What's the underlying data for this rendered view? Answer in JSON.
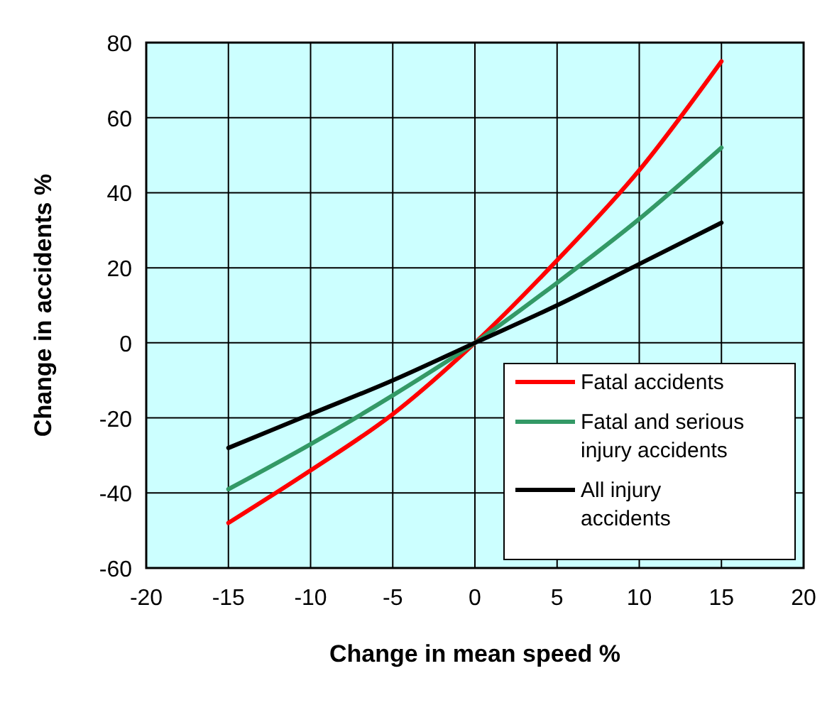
{
  "chart_data": {
    "type": "line",
    "xlabel": "Change in mean speed %",
    "ylabel": "Change in accidents %",
    "x": [
      -15,
      -10,
      -5,
      0,
      5,
      10,
      15
    ],
    "xlim": [
      -20,
      20
    ],
    "xticks": [
      -20,
      -15,
      -10,
      -5,
      0,
      5,
      10,
      15,
      20
    ],
    "ylim": [
      -60,
      80
    ],
    "yticks": [
      -60,
      -40,
      -20,
      0,
      20,
      40,
      60,
      80
    ],
    "grid": true,
    "legend": "bottom right",
    "marker": "none",
    "line_style": "solid",
    "series": [
      {
        "name": "Fatal accidents",
        "color": "#ff0000",
        "values": [
          -48,
          -34,
          -19,
          0,
          22,
          46,
          75
        ]
      },
      {
        "name": "Fatal and serious injury accidents",
        "color": "#339966",
        "values": [
          -39,
          -27,
          -14,
          0,
          16,
          33,
          52
        ]
      },
      {
        "name": "All injury accidents",
        "color": "#000000",
        "values": [
          -28,
          -19,
          -10,
          0,
          10,
          21,
          32
        ]
      }
    ]
  }
}
